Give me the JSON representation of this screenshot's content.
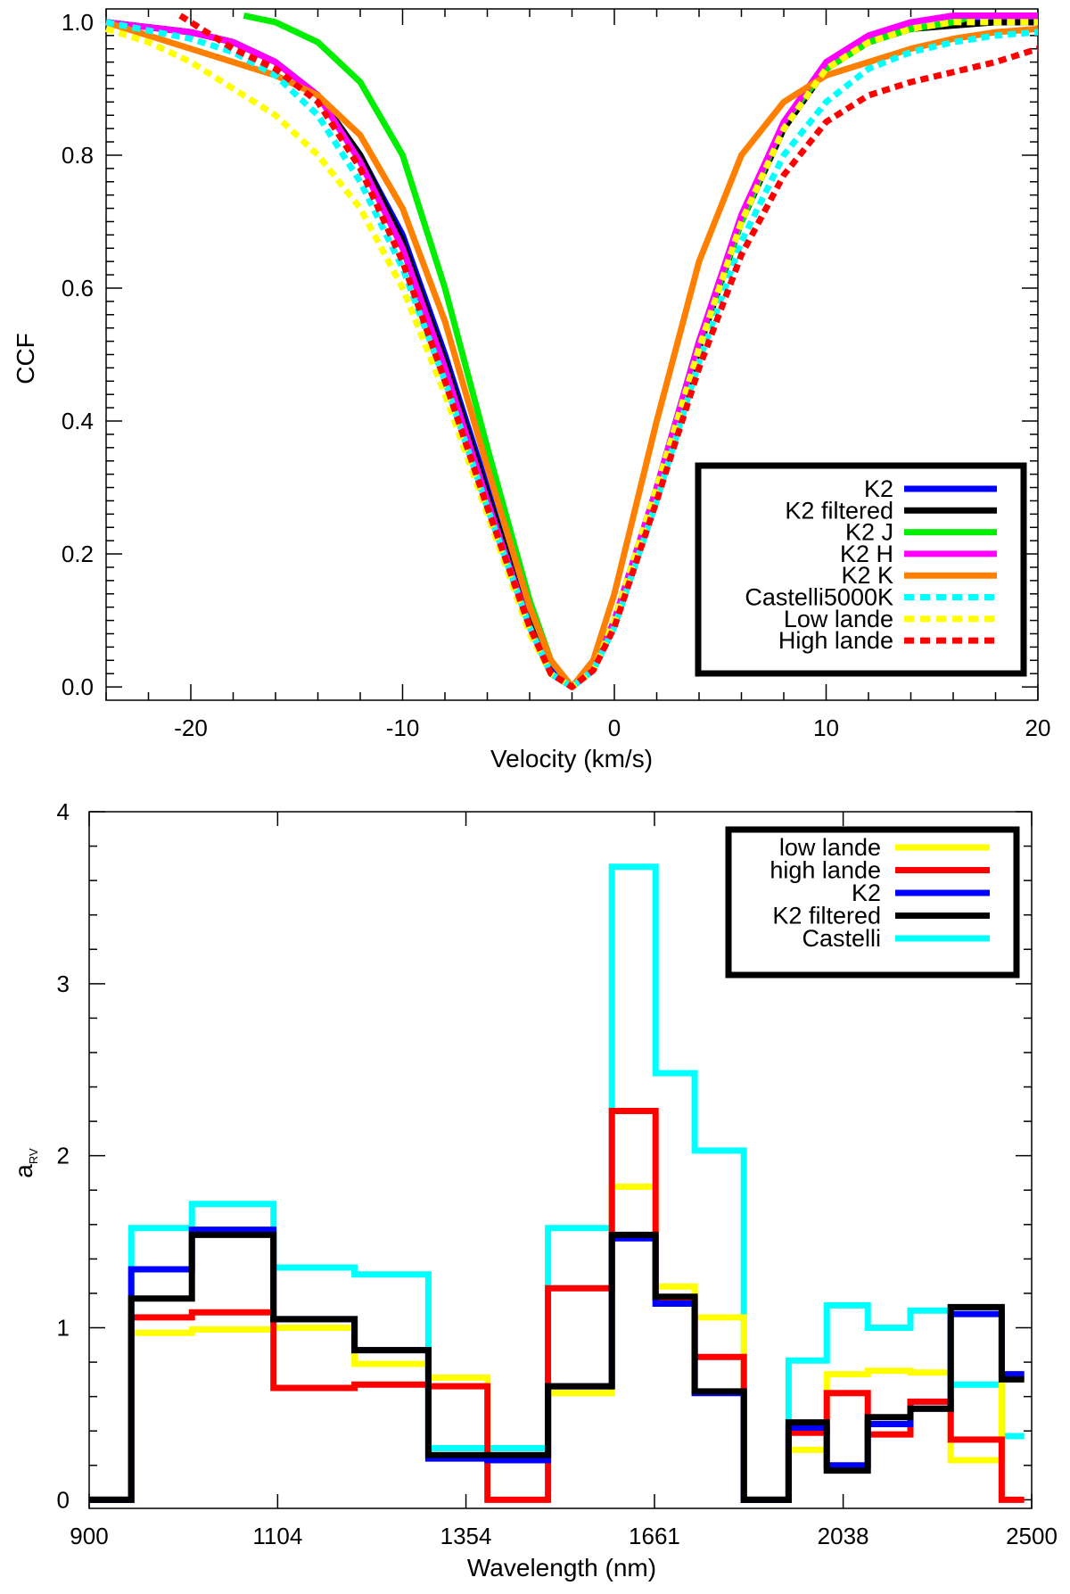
{
  "chart_data": [
    {
      "type": "line",
      "title": "",
      "xlabel": "Velocity (km/s)",
      "ylabel": "CCF",
      "xlim": [
        -24,
        20
      ],
      "ylim": [
        -0.02,
        1.02
      ],
      "xticks": [
        -20,
        -10,
        0,
        10,
        20
      ],
      "xtick_labels": [
        "-20",
        "-10",
        "0",
        "10",
        "20"
      ],
      "yticks": [
        0.0,
        0.2,
        0.4,
        0.6,
        0.8,
        1.0
      ],
      "ytick_labels": [
        "0.0",
        "0.2",
        "0.4",
        "0.6",
        "0.8",
        "1.0"
      ],
      "legend_position": "bottom-right",
      "series": [
        {
          "name": "K2",
          "color": "#0000ff",
          "style": "solid",
          "x": [
            -24,
            -20,
            -18,
            -16,
            -14,
            -12,
            -10,
            -8,
            -6,
            -4,
            -3,
            -2,
            -1,
            0,
            2,
            4,
            6,
            8,
            10,
            12,
            14,
            16,
            18,
            20
          ],
          "y": [
            1.0,
            0.985,
            0.97,
            0.94,
            0.89,
            0.8,
            0.68,
            0.5,
            0.3,
            0.1,
            0.025,
            0.0,
            0.03,
            0.1,
            0.3,
            0.52,
            0.7,
            0.84,
            0.93,
            0.97,
            0.99,
            1.0,
            1.0,
            1.0
          ]
        },
        {
          "name": "K2 filtered",
          "color": "#000000",
          "style": "solid",
          "x": [
            -24,
            -20,
            -18,
            -16,
            -14,
            -12,
            -10,
            -8,
            -6,
            -4,
            -3,
            -2,
            -1,
            0,
            2,
            4,
            6,
            8,
            10,
            12,
            14,
            16,
            18,
            20
          ],
          "y": [
            1.0,
            0.985,
            0.97,
            0.94,
            0.89,
            0.8,
            0.67,
            0.49,
            0.29,
            0.1,
            0.02,
            0.0,
            0.025,
            0.1,
            0.29,
            0.51,
            0.7,
            0.84,
            0.93,
            0.97,
            0.99,
            0.995,
            1.0,
            1.0
          ]
        },
        {
          "name": "K2 J",
          "color": "#00ee00",
          "style": "solid",
          "x": [
            -17.5,
            -16,
            -14,
            -12,
            -10,
            -8,
            -6,
            -4,
            -3,
            -2,
            -1,
            0,
            2,
            4,
            6,
            8,
            10,
            12,
            14,
            16,
            17
          ],
          "y": [
            1.01,
            1.0,
            0.97,
            0.91,
            0.8,
            0.6,
            0.36,
            0.13,
            0.04,
            0.0,
            0.03,
            0.1,
            0.3,
            0.52,
            0.7,
            0.85,
            0.93,
            0.97,
            0.99,
            1.0,
            1.01
          ]
        },
        {
          "name": "K2 H",
          "color": "#ff00ff",
          "style": "solid",
          "x": [
            -24,
            -20,
            -18,
            -16,
            -14,
            -12,
            -10,
            -8,
            -6,
            -4,
            -3,
            -2,
            -1,
            0,
            2,
            4,
            6,
            8,
            10,
            12,
            14,
            16,
            18,
            20
          ],
          "y": [
            1.0,
            0.985,
            0.97,
            0.94,
            0.89,
            0.79,
            0.66,
            0.48,
            0.28,
            0.09,
            0.02,
            0.0,
            0.025,
            0.1,
            0.3,
            0.52,
            0.71,
            0.85,
            0.94,
            0.98,
            1.0,
            1.01,
            1.01,
            1.01
          ]
        },
        {
          "name": "K2 K",
          "color": "#ff8000",
          "style": "solid",
          "x": [
            -24,
            -22,
            -20,
            -18,
            -16,
            -14,
            -12,
            -10,
            -8,
            -6,
            -4,
            -3,
            -2,
            -1,
            0,
            2,
            4,
            6,
            8,
            10,
            12,
            14,
            16,
            18,
            20
          ],
          "y": [
            1.0,
            0.98,
            0.96,
            0.94,
            0.92,
            0.89,
            0.83,
            0.72,
            0.55,
            0.33,
            0.12,
            0.04,
            0.0,
            0.04,
            0.14,
            0.4,
            0.64,
            0.8,
            0.88,
            0.92,
            0.94,
            0.96,
            0.975,
            0.985,
            0.99
          ]
        },
        {
          "name": "Castelli5000K",
          "color": "#00ffff",
          "style": "dashed",
          "x": [
            -24,
            -20,
            -18,
            -16,
            -14,
            -12,
            -10,
            -8,
            -6,
            -4,
            -3,
            -2,
            -1,
            0,
            2,
            4,
            6,
            8,
            10,
            12,
            14,
            16,
            18,
            20
          ],
          "y": [
            1.0,
            0.975,
            0.955,
            0.92,
            0.86,
            0.76,
            0.63,
            0.46,
            0.27,
            0.09,
            0.02,
            0.0,
            0.025,
            0.09,
            0.28,
            0.49,
            0.67,
            0.8,
            0.88,
            0.93,
            0.955,
            0.97,
            0.98,
            0.985
          ]
        },
        {
          "name": "Low lande",
          "color": "#ffff00",
          "style": "dashed",
          "x": [
            -24,
            -22,
            -20,
            -18,
            -16,
            -14,
            -12,
            -10,
            -8,
            -6,
            -4,
            -3,
            -2,
            -1,
            0,
            2,
            4,
            6,
            8,
            10,
            12,
            14,
            16,
            18,
            20
          ],
          "y": [
            0.99,
            0.97,
            0.94,
            0.9,
            0.86,
            0.8,
            0.72,
            0.6,
            0.44,
            0.26,
            0.08,
            0.02,
            0.0,
            0.025,
            0.1,
            0.3,
            0.51,
            0.7,
            0.84,
            0.93,
            0.97,
            0.99,
            1.0,
            1.0,
            1.0
          ]
        },
        {
          "name": "High lande",
          "color": "#ff0000",
          "style": "dashed",
          "x": [
            -20.5,
            -18,
            -16,
            -14,
            -12,
            -10,
            -8,
            -6,
            -4,
            -3,
            -2,
            -1,
            0,
            2,
            4,
            6,
            8,
            10,
            12,
            14,
            16,
            18,
            20
          ],
          "y": [
            1.01,
            0.96,
            0.93,
            0.88,
            0.78,
            0.64,
            0.46,
            0.27,
            0.09,
            0.02,
            0.0,
            0.025,
            0.09,
            0.28,
            0.48,
            0.65,
            0.77,
            0.85,
            0.89,
            0.91,
            0.925,
            0.94,
            0.96
          ]
        }
      ]
    },
    {
      "type": "step",
      "title": "",
      "xlabel": "Wavelength (nm)",
      "ylabel": "a",
      "ylabel_subscript": "RV",
      "xscale": "log",
      "xlim": [
        900,
        2500
      ],
      "ylim": [
        -0.05,
        4.0
      ],
      "xticks": [
        900,
        1104,
        1354,
        1661,
        2038,
        2500
      ],
      "xtick_labels": [
        "900",
        "1104",
        "1354",
        "1661",
        "2038",
        "2500"
      ],
      "yticks": [
        0,
        1,
        2,
        3,
        4
      ],
      "ytick_labels": [
        "0",
        "1",
        "2",
        "3",
        "4"
      ],
      "legend_position": "top-right",
      "bin_edges": [
        900,
        942,
        1006,
        1099,
        1200,
        1300,
        1386,
        1480,
        1586,
        1663,
        1735,
        1830,
        1921,
        2002,
        2093,
        2192,
        2290,
        2420,
        2480
      ],
      "series": [
        {
          "name": "low lande",
          "color": "#ffff00",
          "values": [
            0.0,
            0.97,
            0.99,
            1.0,
            0.79,
            0.71,
            0.23,
            0.62,
            1.82,
            1.24,
            1.06,
            0.0,
            0.29,
            0.73,
            0.75,
            0.74,
            0.23,
            0.71
          ]
        },
        {
          "name": "high lande",
          "color": "#ff0000",
          "values": [
            0.0,
            1.06,
            1.09,
            0.65,
            0.67,
            0.66,
            0.0,
            1.23,
            2.26,
            1.17,
            0.83,
            0.0,
            0.39,
            0.62,
            0.38,
            0.57,
            0.35,
            0.0
          ]
        },
        {
          "name": "K2",
          "color": "#0000ff",
          "values": [
            0.0,
            1.34,
            1.57,
            1.05,
            0.87,
            0.24,
            0.23,
            0.66,
            1.52,
            1.14,
            0.62,
            0.0,
            0.42,
            0.2,
            0.44,
            0.53,
            1.08,
            0.73
          ]
        },
        {
          "name": "K2 filtered",
          "color": "#000000",
          "values": [
            0.0,
            1.17,
            1.54,
            1.05,
            0.87,
            0.26,
            0.26,
            0.66,
            1.54,
            1.18,
            0.63,
            0.0,
            0.45,
            0.17,
            0.48,
            0.53,
            1.12,
            0.7
          ]
        },
        {
          "name": "Castelli",
          "color": "#00ffff",
          "values": [
            0.0,
            1.58,
            1.72,
            1.35,
            1.31,
            0.3,
            0.3,
            1.58,
            3.68,
            2.48,
            2.03,
            0.0,
            0.81,
            1.13,
            1.0,
            1.1,
            0.67,
            0.37
          ]
        }
      ]
    }
  ]
}
